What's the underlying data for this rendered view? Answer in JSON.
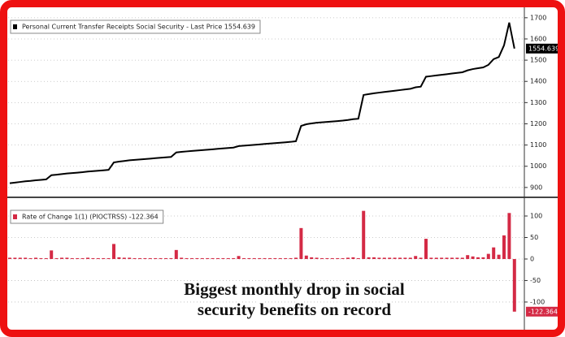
{
  "chart_data": [
    {
      "type": "line",
      "series": [
        {
          "name": "Personal Current Transfer Receipts Social Security - Last Price 1554.639",
          "color": "#000000",
          "values": [
            920,
            923,
            926,
            929,
            931,
            934,
            936,
            938,
            958,
            960,
            963,
            966,
            968,
            970,
            972,
            975,
            977,
            979,
            981,
            983,
            1018,
            1022,
            1025,
            1028,
            1030,
            1032,
            1034,
            1036,
            1038,
            1040,
            1042,
            1044,
            1065,
            1068,
            1070,
            1072,
            1074,
            1076,
            1078,
            1080,
            1082,
            1084,
            1086,
            1088,
            1095,
            1097,
            1099,
            1101,
            1103,
            1105,
            1107,
            1109,
            1111,
            1113,
            1115,
            1118,
            1190,
            1198,
            1202,
            1205,
            1207,
            1209,
            1211,
            1213,
            1215,
            1218,
            1222,
            1224,
            1336,
            1340,
            1344,
            1347,
            1350,
            1353,
            1356,
            1359,
            1362,
            1365,
            1372,
            1375,
            1422,
            1425,
            1428,
            1431,
            1434,
            1437,
            1440,
            1443,
            1452,
            1458,
            1462,
            1466,
            1478,
            1505,
            1515,
            1570,
            1677,
            1554.639
          ]
        }
      ],
      "ylim": [
        865,
        1730
      ],
      "yticks": [
        900,
        1000,
        1100,
        1200,
        1300,
        1400,
        1500,
        1600,
        1700
      ],
      "grid": true
    },
    {
      "type": "bar",
      "series": [
        {
          "name": "Rate of Change 1(1) (PIOCTRSS) -122.364",
          "color": "#d42a45",
          "values": [
            3,
            3,
            3,
            3,
            2,
            3,
            2,
            2,
            20,
            2,
            3,
            3,
            2,
            2,
            2,
            3,
            2,
            2,
            2,
            2,
            35,
            4,
            3,
            3,
            2,
            2,
            2,
            2,
            2,
            2,
            2,
            2,
            21,
            3,
            2,
            2,
            2,
            2,
            2,
            2,
            2,
            2,
            2,
            2,
            7,
            2,
            2,
            2,
            2,
            2,
            2,
            2,
            2,
            2,
            2,
            3,
            72,
            8,
            4,
            3,
            2,
            2,
            2,
            2,
            2,
            3,
            4,
            2,
            112,
            4,
            4,
            3,
            3,
            3,
            3,
            3,
            3,
            3,
            7,
            3,
            47,
            3,
            3,
            3,
            3,
            3,
            3,
            3,
            9,
            6,
            4,
            4,
            12,
            27,
            10,
            55,
            107,
            -122.364
          ]
        }
      ],
      "ylim": [
        -153,
        134
      ],
      "yticks": [
        -100,
        -50,
        0,
        50,
        100
      ],
      "grid": true,
      "annotation": [
        "Biggest monthly drop in social",
        "security benefits on record"
      ]
    }
  ]
}
